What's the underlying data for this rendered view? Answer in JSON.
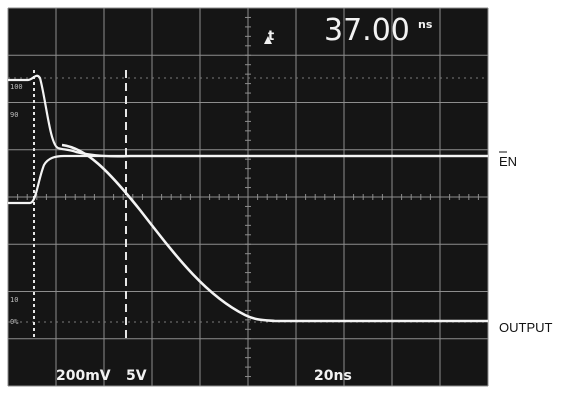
{
  "readout": {
    "cursor_symbol": "t",
    "time_value": "37.00",
    "time_unit": "ns"
  },
  "scale": {
    "ch1": "200mV",
    "ch2": "5V",
    "timebase": "20ns"
  },
  "graticule_marks": {
    "upper_100": "100",
    "upper_90": "90",
    "lower_10": "10",
    "lower_0": "0%"
  },
  "traces": {
    "en_label": "EN",
    "output_label": "OUTPUT"
  },
  "colors": {
    "screen": "#151515",
    "trace": "#f4f4f4",
    "grid": "#8d8d8d",
    "label": "#111111"
  }
}
